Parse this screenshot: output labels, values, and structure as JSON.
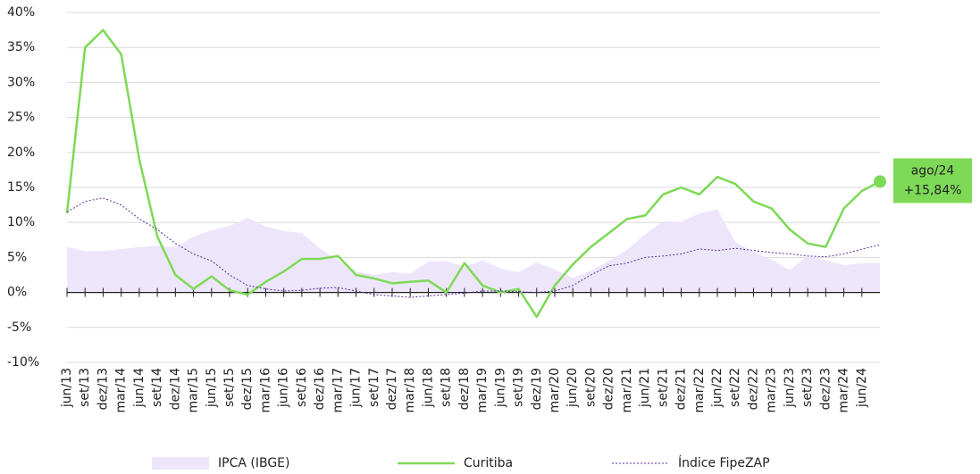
{
  "chart_data": {
    "type": "line",
    "categories": [
      "jun/13",
      "set/13",
      "dez/13",
      "mar/14",
      "jun/14",
      "set/14",
      "dez/14",
      "mar/15",
      "jun/15",
      "set/15",
      "dez/15",
      "mar/16",
      "jun/16",
      "set/16",
      "dez/16",
      "mar/17",
      "jun/17",
      "set/17",
      "dez/17",
      "mar/18",
      "jun/18",
      "set/18",
      "dez/18",
      "mar/19",
      "jun/19",
      "set/19",
      "dez/19",
      "mar/20",
      "jun/20",
      "set/20",
      "dez/20",
      "mar/21",
      "jun/21",
      "set/21",
      "dez/21",
      "mar/22",
      "jun/22",
      "set/22",
      "dez/22",
      "mar/23",
      "jun/23",
      "set/23",
      "dez/23",
      "mar/24",
      "jun/24",
      null
    ],
    "series": [
      {
        "name": "IPCA (IBGE)",
        "style": "area",
        "color": "#ede6fb",
        "values": [
          6.5,
          5.9,
          5.9,
          6.2,
          6.5,
          6.7,
          6.4,
          8,
          8.9,
          9.5,
          10.7,
          9.4,
          8.8,
          8.5,
          6.3,
          4.6,
          3,
          2.5,
          2.9,
          2.7,
          4.4,
          4.5,
          3.7,
          4.6,
          3.4,
          2.9,
          4.3,
          3.3,
          2.1,
          3.1,
          4.5,
          6.1,
          8.3,
          10.2,
          10.1,
          11.3,
          11.9,
          7.2,
          5.8,
          4.7,
          3.2,
          5.2,
          4.6,
          3.9,
          4.2,
          4.2
        ]
      },
      {
        "name": "Curitiba",
        "style": "solid",
        "color": "#7ed957",
        "values": [
          11.3,
          35,
          37.5,
          34,
          19,
          8,
          2.5,
          0.5,
          2.3,
          0.3,
          -0.3,
          1.5,
          3,
          4.8,
          4.8,
          5.2,
          2.5,
          2,
          1.3,
          1.5,
          1.7,
          0,
          4.2,
          1,
          0,
          0.5,
          -3.5,
          1,
          4,
          6.5,
          8.5,
          10.5,
          11,
          14,
          15,
          14,
          16.5,
          15.5,
          13,
          12,
          9,
          7,
          6.5,
          12,
          14.5,
          15.84
        ],
        "value_labels": [
          null,
          null,
          null,
          null,
          null,
          null,
          null,
          null,
          null,
          null,
          null,
          null,
          null,
          null,
          null,
          null,
          null,
          null,
          null,
          null,
          null,
          null,
          null,
          null,
          null,
          null,
          null,
          null,
          null,
          null,
          null,
          null,
          null,
          null,
          null,
          null,
          null,
          null,
          null,
          null,
          null,
          null,
          null,
          null,
          null,
          "+15,84%"
        ]
      },
      {
        "name": "Índice FipeZAP",
        "style": "dotted",
        "color": "#5a2ca0",
        "values": [
          11.5,
          13,
          13.5,
          12.5,
          10.5,
          9,
          7,
          5.5,
          4.5,
          2.5,
          1,
          0.5,
          0.2,
          0.3,
          0.6,
          0.7,
          0.2,
          -0.3,
          -0.5,
          -0.7,
          -0.5,
          -0.3,
          -0.1,
          0.2,
          0.2,
          0.1,
          0,
          0.2,
          1,
          2.5,
          3.8,
          4.2,
          5,
          5.2,
          5.5,
          6.2,
          6,
          6.3,
          6,
          5.7,
          5.5,
          5.2,
          5.1,
          5.5,
          6.2,
          6.8
        ]
      }
    ],
    "annotation": "ago/24",
    "ylim": [
      -10,
      40
    ],
    "yticks": [
      {
        "value": -10,
        "label": "-10%"
      },
      {
        "value": -5,
        "label": "-5%"
      },
      {
        "value": 0,
        "label": "0%"
      },
      {
        "value": 5,
        "label": "5%"
      },
      {
        "value": 10,
        "label": "10%"
      },
      {
        "value": 15,
        "label": "15%"
      },
      {
        "value": 20,
        "label": "20%"
      },
      {
        "value": 25,
        "label": "25%"
      },
      {
        "value": 30,
        "label": "30%"
      },
      {
        "value": 35,
        "label": "35%"
      },
      {
        "value": 40,
        "label": "40%"
      }
    ],
    "grid": true
  }
}
